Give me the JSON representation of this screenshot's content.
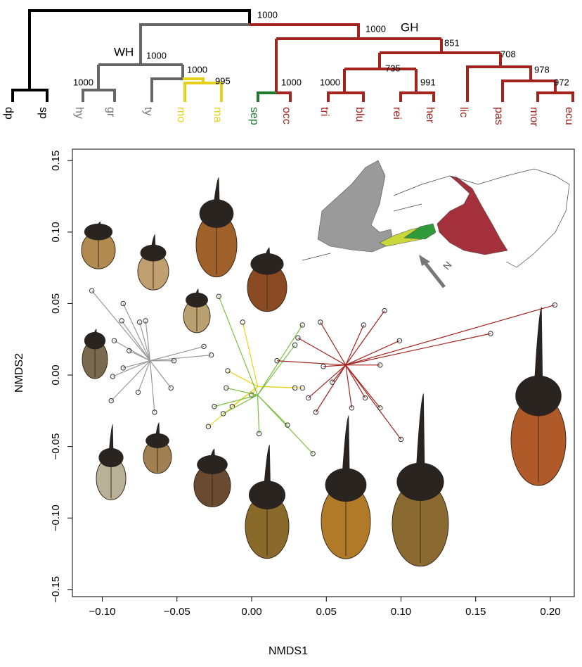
{
  "tree": {
    "leaves": [
      {
        "label": "dp",
        "color": "#000000"
      },
      {
        "label": "sp",
        "color": "#000000"
      },
      {
        "label": "hy",
        "color": "#777777"
      },
      {
        "label": "gr",
        "color": "#777777"
      },
      {
        "label": "ty",
        "color": "#777777"
      },
      {
        "label": "mo",
        "color": "#e6d21a"
      },
      {
        "label": "ma",
        "color": "#e6d21a"
      },
      {
        "label": "sep",
        "color": "#1e7a2e"
      },
      {
        "label": "occ",
        "color": "#a3231f"
      },
      {
        "label": "tri",
        "color": "#a3231f"
      },
      {
        "label": "blu",
        "color": "#a3231f"
      },
      {
        "label": "rei",
        "color": "#a3231f"
      },
      {
        "label": "her",
        "color": "#a3231f"
      },
      {
        "label": "lic",
        "color": "#a3231f"
      },
      {
        "label": "pas",
        "color": "#a3231f"
      },
      {
        "label": "mor",
        "color": "#a3231f"
      },
      {
        "label": "ecu",
        "color": "#a3231f"
      }
    ],
    "support": [
      1000,
      1000,
      851,
      708,
      735,
      978,
      972,
      991,
      1000,
      1000,
      1000,
      1000,
      995,
      1000
    ],
    "clades": [
      "WH",
      "GH"
    ]
  },
  "map": {
    "north_label": "N"
  },
  "chart_data": {
    "type": "scatter",
    "x_label": "NMDS1",
    "y_label": "NMDS2",
    "xlim": [
      -0.12,
      0.216
    ],
    "ylim": [
      -0.155,
      0.158
    ],
    "xticks": [
      {
        "value": -0.1,
        "label": "−0.10"
      },
      {
        "value": -0.05,
        "label": "−0.05"
      },
      {
        "value": 0,
        "label": "0.00"
      },
      {
        "value": 0.05,
        "label": "0.05"
      },
      {
        "value": 0.1,
        "label": "0.10"
      },
      {
        "value": 0.15,
        "label": "0.15"
      },
      {
        "value": 0.2,
        "label": "0.20"
      }
    ],
    "yticks": [
      {
        "value": -0.15,
        "label": "−0.15"
      },
      {
        "value": -0.1,
        "label": "−0.10"
      },
      {
        "value": -0.05,
        "label": "−0.05"
      },
      {
        "value": 0,
        "label": "0.00"
      },
      {
        "value": 0.05,
        "label": "0.05"
      },
      {
        "value": 0.1,
        "label": "0.10"
      },
      {
        "value": 0.15,
        "label": "0.15"
      }
    ],
    "series": [
      {
        "color": "#999999",
        "centroid": [
          -0.068,
          0.01
        ],
        "x": [
          -0.107,
          -0.086,
          -0.087,
          -0.075,
          -0.071,
          -0.092,
          -0.082,
          -0.032,
          -0.027,
          -0.052,
          -0.086,
          -0.093,
          -0.054,
          -0.076,
          -0.094,
          -0.065
        ],
        "y": [
          0.059,
          0.05,
          0.038,
          0.037,
          0.038,
          0.024,
          0.017,
          0.02,
          0.014,
          0.01,
          0.005,
          -0.001,
          -0.009,
          -0.012,
          -0.018,
          -0.026
        ]
      },
      {
        "color": "#e8d31c",
        "centroid": [
          0.004,
          -0.008
        ],
        "x": [
          -0.006,
          -0.016,
          -0.029,
          -0.013,
          0.029,
          0.034,
          0.0
        ],
        "y": [
          0.037,
          0.003,
          -0.036,
          -0.022,
          -0.009,
          -0.009,
          -0.014
        ]
      },
      {
        "color": "#7cc043",
        "centroid": [
          0.004,
          -0.014
        ],
        "x": [
          -0.022,
          0.034,
          0.029,
          -0.025,
          -0.019,
          0.005,
          0.024,
          0.041,
          -0.017
        ],
        "y": [
          0.055,
          0.035,
          0.021,
          -0.022,
          -0.027,
          -0.041,
          -0.035,
          -0.055,
          -0.009
        ]
      },
      {
        "color": "#a3231f",
        "centroid": [
          0.063,
          0.007
        ],
        "x": [
          0.203,
          0.16,
          0.089,
          0.075,
          0.099,
          0.046,
          0.031,
          0.017,
          0.086,
          0.038,
          0.043,
          0.076,
          0.086,
          0.1,
          0.054,
          0.048,
          0.067
        ],
        "y": [
          0.049,
          0.029,
          0.045,
          0.035,
          0.024,
          0.037,
          0.026,
          0.01,
          0.007,
          -0.016,
          -0.026,
          -0.016,
          -0.023,
          -0.045,
          -0.005,
          0.006,
          -0.023
        ]
      }
    ]
  }
}
